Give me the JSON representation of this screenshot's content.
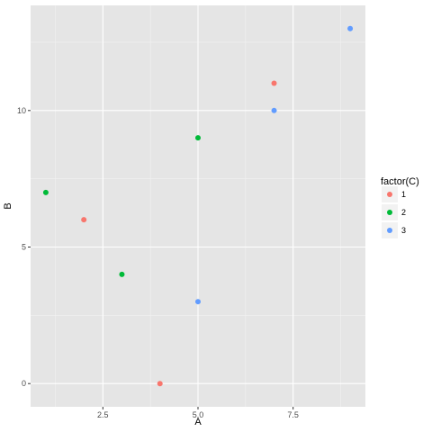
{
  "chart_data": {
    "type": "scatter",
    "title": "",
    "xlabel": "A",
    "ylabel": "B",
    "xlim": [
      0.6,
      9.4
    ],
    "ylim": [
      -0.85,
      13.85
    ],
    "x_ticks": [
      2.5,
      5.0,
      7.5
    ],
    "x_tick_labels": [
      "2.5",
      "5.0",
      "7.5"
    ],
    "y_ticks": [
      0,
      5,
      10
    ],
    "y_tick_labels": [
      "0",
      "5",
      "10"
    ],
    "grid": true,
    "background": "#e5e5e5",
    "legend": {
      "title": "factor(C)",
      "position": "right",
      "entries": [
        {
          "label": "1",
          "color": "#f8766d"
        },
        {
          "label": "2",
          "color": "#00ba38"
        },
        {
          "label": "3",
          "color": "#619cff"
        }
      ]
    },
    "series": [
      {
        "name": "1",
        "color": "#f8766d",
        "points": [
          {
            "x": 2,
            "y": 6
          },
          {
            "x": 4,
            "y": 0
          },
          {
            "x": 7,
            "y": 11
          }
        ]
      },
      {
        "name": "2",
        "color": "#00ba38",
        "points": [
          {
            "x": 1,
            "y": 7
          },
          {
            "x": 3,
            "y": 4
          },
          {
            "x": 5,
            "y": 9
          }
        ]
      },
      {
        "name": "3",
        "color": "#619cff",
        "points": [
          {
            "x": 5,
            "y": 3
          },
          {
            "x": 7,
            "y": 10
          },
          {
            "x": 9,
            "y": 13
          }
        ]
      }
    ]
  }
}
